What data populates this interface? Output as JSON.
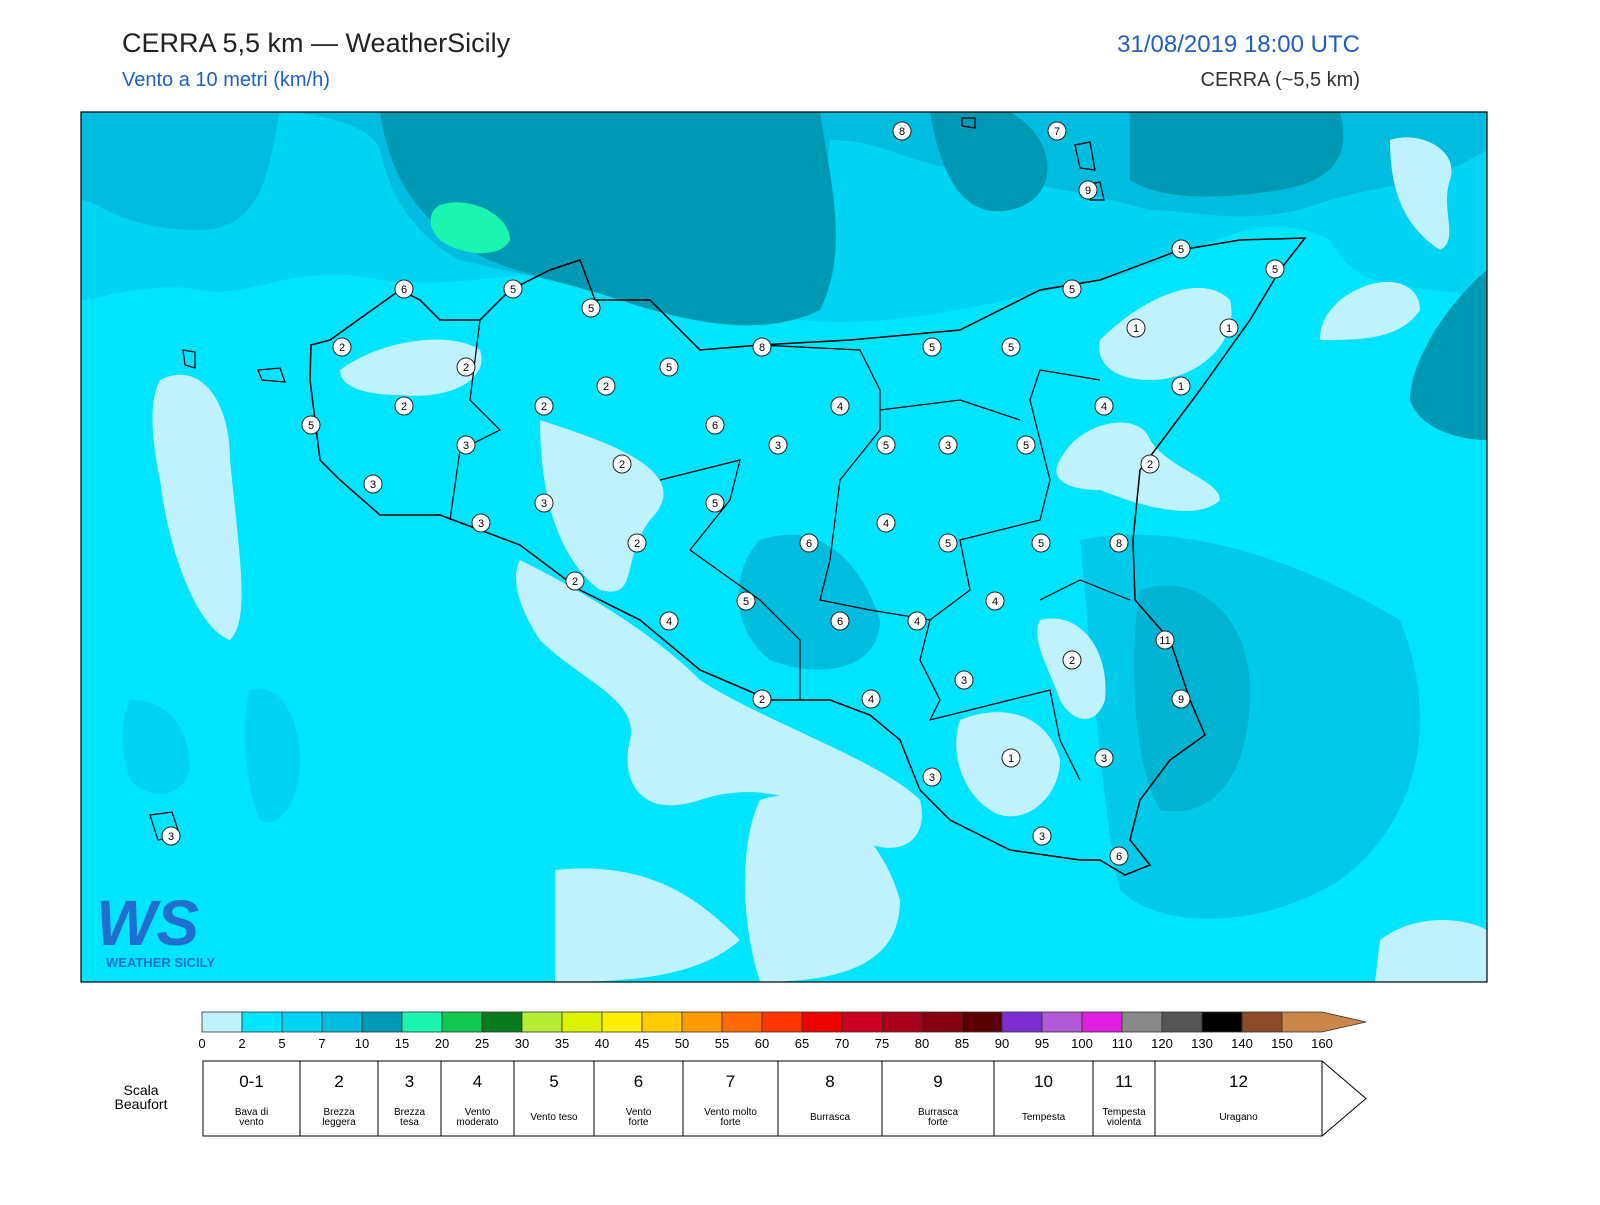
{
  "header": {
    "title": "CERRA 5,5 km — WeatherSicily",
    "subtitle": "Vento a 10 metri (km/h)",
    "datetime": "31/08/2019 18:00 UTC",
    "model": "CERRA (~5,5 km)"
  },
  "stations": [
    8,
    7,
    9,
    5,
    5,
    6,
    5,
    5,
    5,
    2,
    8,
    5,
    5,
    1,
    1,
    2,
    5,
    2,
    1,
    2,
    2,
    4,
    4,
    5,
    6,
    3,
    3,
    5,
    3,
    5,
    2,
    2,
    3,
    3,
    5,
    3,
    4,
    2,
    6,
    5,
    5,
    8,
    2,
    4,
    5,
    4,
    6,
    4,
    11,
    2,
    3,
    2,
    4,
    9,
    1,
    3,
    3,
    3,
    3,
    6
  ],
  "logo": {
    "mark": "WS",
    "name": "WEATHER SICILY"
  },
  "colorbar": {
    "ticks": [
      0,
      2,
      5,
      7,
      10,
      15,
      20,
      25,
      30,
      35,
      40,
      45,
      50,
      55,
      60,
      65,
      70,
      75,
      80,
      85,
      90,
      95,
      100,
      110,
      120,
      130,
      140,
      150,
      160
    ],
    "colors": [
      "#bff2fd",
      "#00e5ff",
      "#00d4f2",
      "#00bde0",
      "#0099b4",
      "#1af5b0",
      "#12c84e",
      "#0a7a1e",
      "#b6ee35",
      "#dcf200",
      "#ffee00",
      "#ffcc00",
      "#ff9a00",
      "#ff6a00",
      "#ff3500",
      "#ee0000",
      "#cc0022",
      "#a8001a",
      "#870010",
      "#5a0000",
      "#7a2ed2",
      "#b25ad6",
      "#e020e0",
      "#888888",
      "#555555",
      "#000000",
      "#8b4a28",
      "#c9854a"
    ]
  },
  "beaufort": {
    "title": [
      "Scala",
      "Beaufort"
    ],
    "levels": [
      {
        "force": "0-1",
        "desc": [
          "Bava di",
          "vento"
        ]
      },
      {
        "force": "2",
        "desc": [
          "Brezza",
          "leggera"
        ]
      },
      {
        "force": "3",
        "desc": [
          "Brezza",
          "tesa"
        ]
      },
      {
        "force": "4",
        "desc": [
          "Vento",
          "moderato"
        ]
      },
      {
        "force": "5",
        "desc": [
          "Vento teso"
        ]
      },
      {
        "force": "6",
        "desc": [
          "Vento",
          "forte"
        ]
      },
      {
        "force": "7",
        "desc": [
          "Vento molto",
          "forte"
        ]
      },
      {
        "force": "8",
        "desc": [
          "Burrasca"
        ]
      },
      {
        "force": "9",
        "desc": [
          "Burrasca",
          "forte"
        ]
      },
      {
        "force": "10",
        "desc": [
          "Tempesta"
        ]
      },
      {
        "force": "11",
        "desc": [
          "Tempesta",
          "violenta"
        ]
      },
      {
        "force": "12",
        "desc": [
          "Uragano"
        ]
      }
    ]
  }
}
